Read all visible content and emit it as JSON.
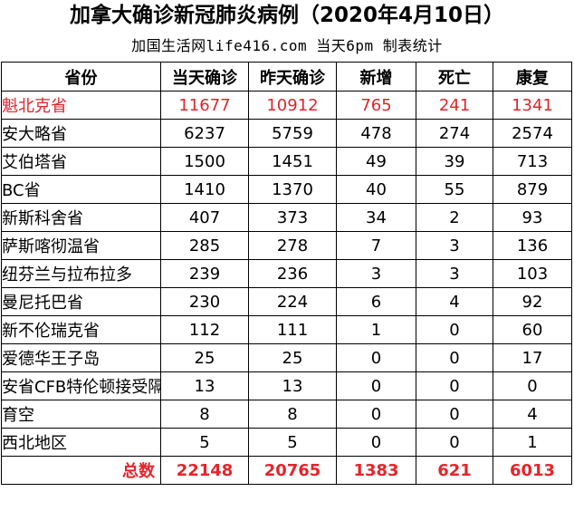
{
  "header": {
    "title": "加拿大确诊新冠肺炎病例（2020年4月10日）",
    "subtitle": "加国生活网life416.com 当天6pm 制表统计"
  },
  "table": {
    "columns": [
      "省份",
      "当天确诊",
      "昨天确诊",
      "新增",
      "死亡",
      "康复"
    ],
    "rows": [
      [
        "魁北克省",
        "11677",
        "10912",
        "765",
        "241",
        "1341"
      ],
      [
        "安大略省",
        "6237",
        "5759",
        "478",
        "274",
        "2574"
      ],
      [
        "艾伯塔省",
        "1500",
        "1451",
        "49",
        "39",
        "713"
      ],
      [
        "BC省",
        "1410",
        "1370",
        "40",
        "55",
        "879"
      ],
      [
        "新斯科舍省",
        "407",
        "373",
        "34",
        "2",
        "93"
      ],
      [
        "萨斯喀彻温省",
        "285",
        "278",
        "7",
        "3",
        "136"
      ],
      [
        "纽芬兰与拉布拉多",
        "239",
        "236",
        "3",
        "3",
        "103"
      ],
      [
        "曼尼托巴省",
        "230",
        "224",
        "6",
        "4",
        "92"
      ],
      [
        "新不伦瑞克省",
        "112",
        "111",
        "1",
        "0",
        "60"
      ],
      [
        "爱德华王子岛",
        "25",
        "25",
        "0",
        "0",
        "17"
      ],
      [
        "安省CFB特伦顿接受隔离",
        "13",
        "13",
        "0",
        "0",
        "0"
      ],
      [
        "育空",
        "8",
        "8",
        "0",
        "0",
        "4"
      ],
      [
        "西北地区",
        "5",
        "5",
        "0",
        "0",
        "1"
      ]
    ],
    "total": [
      "总数",
      "22148",
      "20765",
      "1383",
      "621",
      "6013"
    ]
  },
  "colors": {
    "highlight": "#e5242b",
    "text": "#000000",
    "border": "#000000"
  }
}
